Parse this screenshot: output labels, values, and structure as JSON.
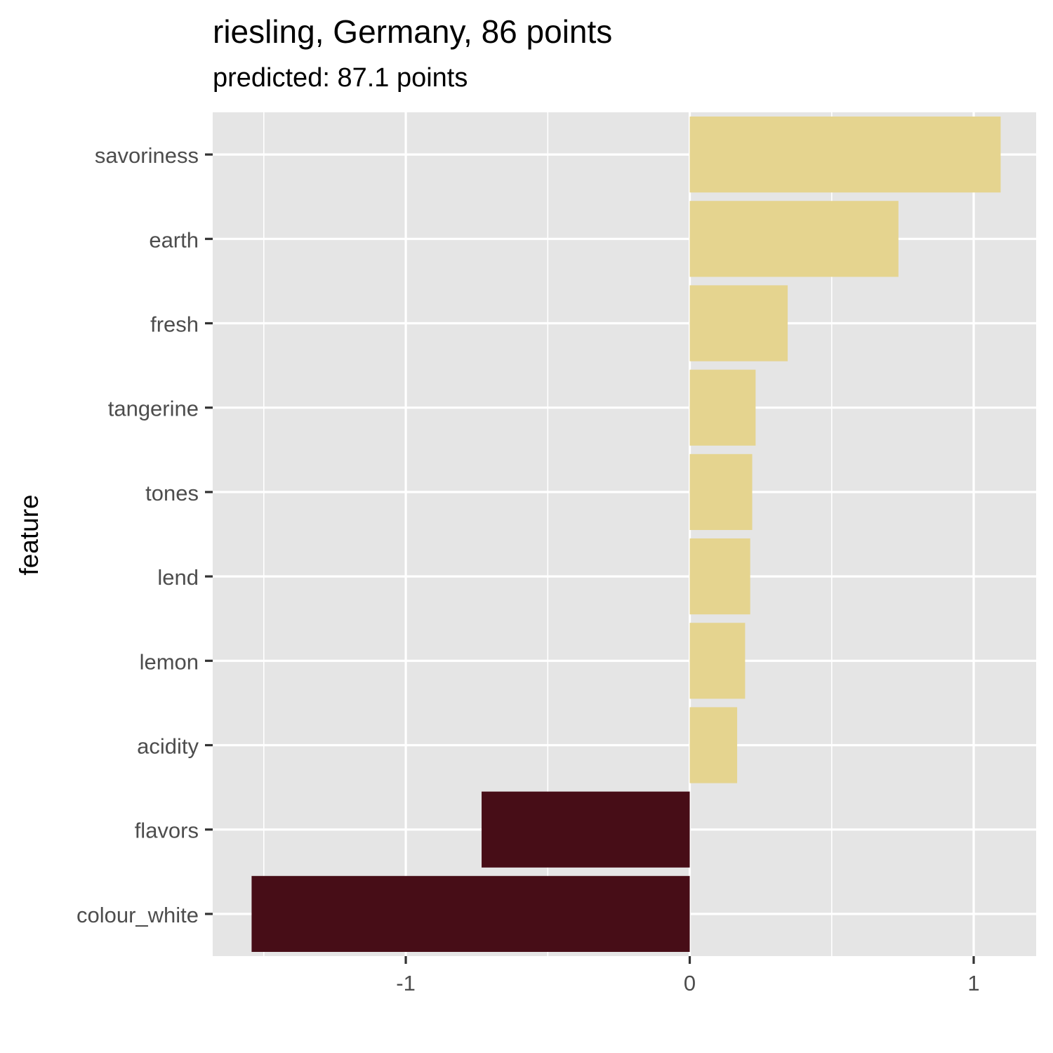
{
  "chart_data": {
    "type": "bar",
    "orientation": "horizontal",
    "title": "riesling, Germany, 86 points",
    "subtitle": "predicted: 87.1 points",
    "xlabel": "",
    "ylabel": "feature",
    "xlim": [
      -1.68,
      1.22
    ],
    "xticks": [
      -1,
      0,
      1
    ],
    "xtick_labels": [
      "-1",
      "0",
      "1"
    ],
    "grid": true,
    "legend": "none",
    "categories": [
      "savoriness",
      "earth",
      "fresh",
      "tangerine",
      "tones",
      "lend",
      "lemon",
      "acidity",
      "flavors",
      "colour_white"
    ],
    "values": [
      1.095,
      0.735,
      0.345,
      0.232,
      0.22,
      0.213,
      0.195,
      0.167,
      -0.733,
      -1.543
    ],
    "colors": {
      "positive": "#e5d48f",
      "negative": "#470d17",
      "panel_background": "#e5e5e5",
      "gridline": "#ffffff",
      "tick_label": "#4d4d4d",
      "tick_mark": "#333333"
    }
  }
}
